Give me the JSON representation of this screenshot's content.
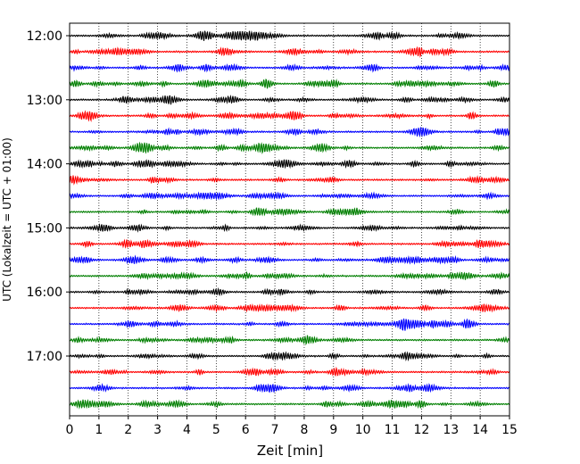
{
  "chart_data": {
    "type": "line",
    "title": "",
    "xlabel": "Zeit  [min]",
    "ylabel": "UTC (Lokalzeit = UTC + 01:00)",
    "xlim": [
      0,
      15
    ],
    "x_ticks": [
      "0",
      "1",
      "2",
      "3",
      "4",
      "5",
      "6",
      "7",
      "8",
      "9",
      "10",
      "11",
      "12",
      "13",
      "14",
      "15"
    ],
    "y_ticks": [
      "12:00",
      "13:00",
      "14:00",
      "15:00",
      "16:00",
      "17:00"
    ],
    "grid": "vertical dotted at each minute",
    "trace_colors": [
      "#000000",
      "#ff0000",
      "#0000ff",
      "#007f00"
    ],
    "series": [
      {
        "start": "12:00"
      },
      {
        "start": "12:15"
      },
      {
        "start": "12:30"
      },
      {
        "start": "12:45"
      },
      {
        "start": "13:00"
      },
      {
        "start": "13:15"
      },
      {
        "start": "13:30"
      },
      {
        "start": "13:45"
      },
      {
        "start": "14:00"
      },
      {
        "start": "14:15"
      },
      {
        "start": "14:30"
      },
      {
        "start": "14:45"
      },
      {
        "start": "15:00"
      },
      {
        "start": "15:15"
      },
      {
        "start": "15:30"
      },
      {
        "start": "15:45"
      },
      {
        "start": "16:00"
      },
      {
        "start": "16:15"
      },
      {
        "start": "16:30"
      },
      {
        "start": "16:45"
      },
      {
        "start": "17:00"
      },
      {
        "start": "17:15"
      },
      {
        "start": "17:30"
      },
      {
        "start": "17:45"
      }
    ]
  }
}
